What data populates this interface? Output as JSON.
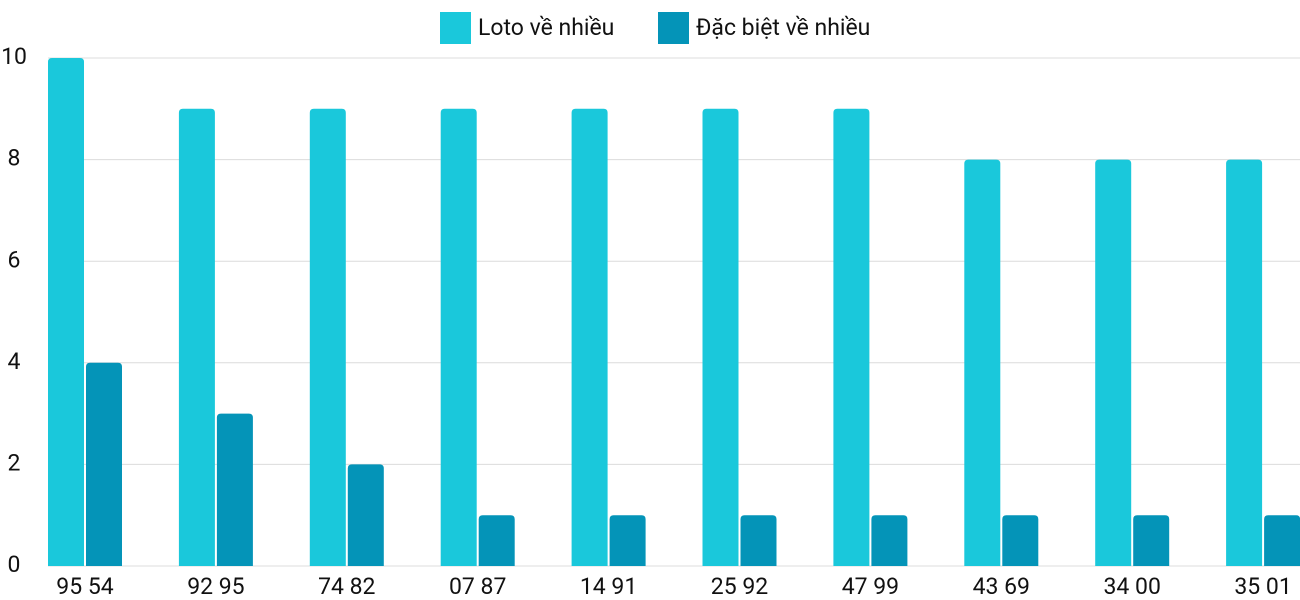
{
  "chart_data": {
    "type": "bar",
    "categories": [
      "95 54",
      "92 95",
      "74 82",
      "07 87",
      "14 91",
      "25 92",
      "47 99",
      "43 69",
      "34 00",
      "35 01"
    ],
    "series": [
      {
        "name": "Loto về nhiều",
        "color": "#1ac8db",
        "values": [
          10,
          9,
          9,
          9,
          9,
          9,
          9,
          8,
          8,
          8
        ]
      },
      {
        "name": "Đặc biệt về nhiều",
        "color": "#0494b8",
        "values": [
          4,
          3,
          2,
          1,
          1,
          1,
          1,
          1,
          1,
          1
        ]
      }
    ],
    "ylim": [
      0,
      10
    ],
    "yticks": [
      0,
      2,
      4,
      6,
      8,
      10
    ],
    "grid": true,
    "legend": "top"
  }
}
